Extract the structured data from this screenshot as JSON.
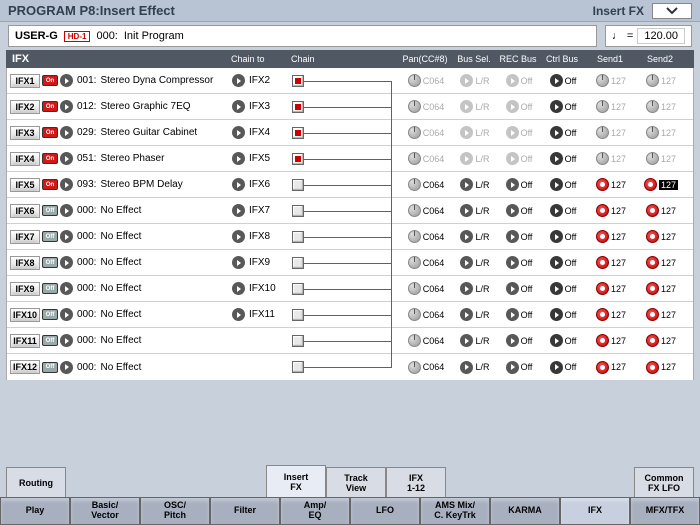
{
  "titlebar": {
    "title": "PROGRAM P8:Insert Effect",
    "right_label": "Insert FX"
  },
  "program": {
    "bank": "USER-G",
    "hd": "HD-1",
    "num": "000:",
    "name": "Init Program",
    "tempo": "120.00"
  },
  "headers": {
    "ifx": "IFX",
    "chainto": "Chain to",
    "chain": "Chain",
    "pan": "Pan(CC#8)",
    "bsel": "Bus Sel.",
    "rec": "REC Bus",
    "ctrl": "Ctrl Bus",
    "s1": "Send1",
    "s2": "Send2"
  },
  "rows": [
    {
      "slot": "IFX1",
      "on": true,
      "num": "001:",
      "name": "Stereo Dyna Compressor",
      "chainto": "IFX2",
      "chain": true,
      "active": false,
      "pan": "C064",
      "bsel": "L/R",
      "rec": "Off",
      "ctrl": "Off",
      "s1": "127",
      "s2": "127",
      "s2sel": false
    },
    {
      "slot": "IFX2",
      "on": true,
      "num": "012:",
      "name": "Stereo Graphic 7EQ",
      "chainto": "IFX3",
      "chain": true,
      "active": false,
      "pan": "C064",
      "bsel": "L/R",
      "rec": "Off",
      "ctrl": "Off",
      "s1": "127",
      "s2": "127",
      "s2sel": false
    },
    {
      "slot": "IFX3",
      "on": true,
      "num": "029:",
      "name": "Stereo Guitar Cabinet",
      "chainto": "IFX4",
      "chain": true,
      "active": false,
      "pan": "C064",
      "bsel": "L/R",
      "rec": "Off",
      "ctrl": "Off",
      "s1": "127",
      "s2": "127",
      "s2sel": false
    },
    {
      "slot": "IFX4",
      "on": true,
      "num": "051:",
      "name": "Stereo Phaser",
      "chainto": "IFX5",
      "chain": true,
      "active": false,
      "pan": "C064",
      "bsel": "L/R",
      "rec": "Off",
      "ctrl": "Off",
      "s1": "127",
      "s2": "127",
      "s2sel": false
    },
    {
      "slot": "IFX5",
      "on": true,
      "num": "093:",
      "name": "Stereo BPM Delay",
      "chainto": "IFX6",
      "chain": false,
      "active": true,
      "pan": "C064",
      "bsel": "L/R",
      "rec": "Off",
      "ctrl": "Off",
      "s1": "127",
      "s2": "127",
      "s2sel": true
    },
    {
      "slot": "IFX6",
      "on": false,
      "num": "000:",
      "name": "No Effect",
      "chainto": "IFX7",
      "chain": false,
      "active": true,
      "pan": "C064",
      "bsel": "L/R",
      "rec": "Off",
      "ctrl": "Off",
      "s1": "127",
      "s2": "127",
      "s2sel": false
    },
    {
      "slot": "IFX7",
      "on": false,
      "num": "000:",
      "name": "No Effect",
      "chainto": "IFX8",
      "chain": false,
      "active": true,
      "pan": "C064",
      "bsel": "L/R",
      "rec": "Off",
      "ctrl": "Off",
      "s1": "127",
      "s2": "127",
      "s2sel": false
    },
    {
      "slot": "IFX8",
      "on": false,
      "num": "000:",
      "name": "No Effect",
      "chainto": "IFX9",
      "chain": false,
      "active": true,
      "pan": "C064",
      "bsel": "L/R",
      "rec": "Off",
      "ctrl": "Off",
      "s1": "127",
      "s2": "127",
      "s2sel": false
    },
    {
      "slot": "IFX9",
      "on": false,
      "num": "000:",
      "name": "No Effect",
      "chainto": "IFX10",
      "chain": false,
      "active": true,
      "pan": "C064",
      "bsel": "L/R",
      "rec": "Off",
      "ctrl": "Off",
      "s1": "127",
      "s2": "127",
      "s2sel": false
    },
    {
      "slot": "IFX10",
      "on": false,
      "num": "000:",
      "name": "No Effect",
      "chainto": "IFX11",
      "chain": false,
      "active": true,
      "pan": "C064",
      "bsel": "L/R",
      "rec": "Off",
      "ctrl": "Off",
      "s1": "127",
      "s2": "127",
      "s2sel": false
    },
    {
      "slot": "IFX11",
      "on": false,
      "num": "000:",
      "name": "No Effect",
      "chainto": "",
      "chain": false,
      "active": true,
      "pan": "C064",
      "bsel": "L/R",
      "rec": "Off",
      "ctrl": "Off",
      "s1": "127",
      "s2": "127",
      "s2sel": false
    },
    {
      "slot": "IFX12",
      "on": false,
      "num": "000:",
      "name": "No Effect",
      "chainto": "",
      "chain": false,
      "active": true,
      "pan": "C064",
      "bsel": "L/R",
      "rec": "Off",
      "ctrl": "Off",
      "s1": "127",
      "s2": "127",
      "s2sel": false
    }
  ],
  "tabs1": {
    "routing": "Routing",
    "insertfx": "Insert\nFX",
    "trackview": "Track\nView",
    "ifx112": "IFX\n1-12",
    "common": "Common\nFX LFO"
  },
  "tabs2": [
    "Play",
    "Basic/\nVector",
    "OSC/\nPitch",
    "Filter",
    "Amp/\nEQ",
    "LFO",
    "AMS Mix/\nC. KeyTrk",
    "KARMA",
    "IFX",
    "MFX/TFX"
  ],
  "tabs2_active": 8,
  "colors": {
    "on": "#d01818",
    "off": "#99aaaa",
    "accent": "#4060c0"
  }
}
